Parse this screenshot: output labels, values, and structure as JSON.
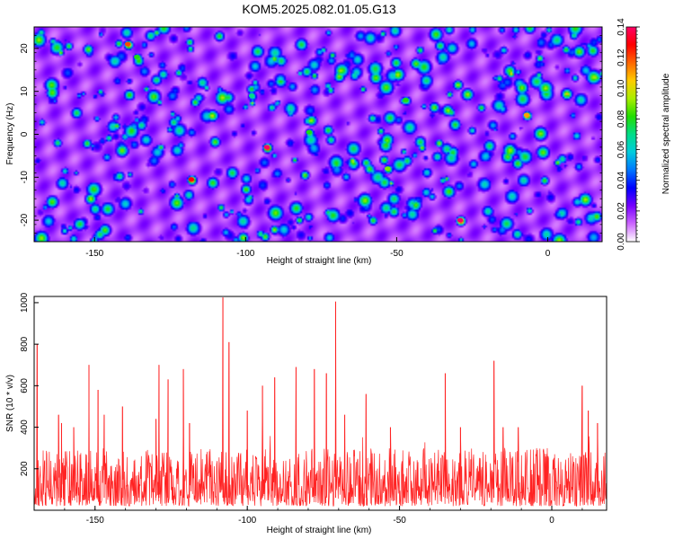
{
  "title": "KOM5.2025.082.01.05.G13",
  "chart_data": [
    {
      "type": "heatmap",
      "xlabel": "Height of straight line (km)",
      "ylabel": "Frequency (Hz)",
      "xlim": [
        -170,
        18
      ],
      "ylim": [
        -25,
        25
      ],
      "xticks": [
        -150,
        -100,
        -50,
        0
      ],
      "yticks": [
        -20,
        -10,
        0,
        10,
        20
      ],
      "colorbar": {
        "label": "Normalized spectral amplitude",
        "range": [
          0,
          0.14
        ],
        "ticks": [
          "0.00",
          "0.02",
          "0.04",
          "0.06",
          "0.08",
          "0.10",
          "0.12",
          "0.14"
        ],
        "colors": [
          "#ffffff",
          "#cc66ff",
          "#7700ff",
          "#0000ff",
          "#0077ff",
          "#00ccdd",
          "#00dd88",
          "#22dd00",
          "#aaee00",
          "#ffcc00",
          "#ff6600",
          "#ff0000",
          "#ff0066"
        ]
      },
      "hotspots": [
        {
          "x": -93,
          "y": -3,
          "value": 0.14
        },
        {
          "x": -29,
          "y": -20,
          "value": 0.14
        },
        {
          "x": -118,
          "y": -10.5,
          "value": 0.13
        },
        {
          "x": -139,
          "y": 21,
          "value": 0.12
        },
        {
          "x": -7,
          "y": 4.5,
          "value": 0.11
        },
        {
          "x": -53,
          "y": -8,
          "value": 0.09
        },
        {
          "x": -47,
          "y": 8,
          "value": 0.08
        },
        {
          "x": -79,
          "y": 0.5,
          "value": 0.08
        },
        {
          "x": -136,
          "y": 18,
          "value": 0.08
        },
        {
          "x": -98,
          "y": 9,
          "value": 0.07
        }
      ]
    },
    {
      "type": "line",
      "xlabel": "Height of straight line (km)",
      "ylabel": "SNR (10 * v/v)",
      "xlim": [
        -170,
        18
      ],
      "ylim": [
        0,
        1030
      ],
      "xticks": [
        -150,
        -100,
        -50,
        0
      ],
      "yticks": [
        200,
        400,
        600,
        800,
        1000
      ],
      "color": "#ff2222",
      "baseline_range": [
        20,
        300
      ],
      "peaks": [
        {
          "x": -169,
          "y": 800
        },
        {
          "x": -162,
          "y": 460
        },
        {
          "x": -161,
          "y": 420
        },
        {
          "x": -157,
          "y": 400
        },
        {
          "x": -152,
          "y": 700
        },
        {
          "x": -149,
          "y": 580
        },
        {
          "x": -147,
          "y": 460
        },
        {
          "x": -141,
          "y": 500
        },
        {
          "x": -130,
          "y": 440
        },
        {
          "x": -129,
          "y": 700
        },
        {
          "x": -126,
          "y": 630
        },
        {
          "x": -121,
          "y": 680
        },
        {
          "x": -119,
          "y": 420
        },
        {
          "x": -108,
          "y": 1025
        },
        {
          "x": -106,
          "y": 810
        },
        {
          "x": -100,
          "y": 480
        },
        {
          "x": -95,
          "y": 600
        },
        {
          "x": -91,
          "y": 640
        },
        {
          "x": -84,
          "y": 690
        },
        {
          "x": -78,
          "y": 680
        },
        {
          "x": -74,
          "y": 660
        },
        {
          "x": -71,
          "y": 1005
        },
        {
          "x": -68,
          "y": 460
        },
        {
          "x": -61,
          "y": 560
        },
        {
          "x": -53,
          "y": 400
        },
        {
          "x": -35,
          "y": 660
        },
        {
          "x": -30,
          "y": 400
        },
        {
          "x": -19,
          "y": 720
        },
        {
          "x": -16,
          "y": 400
        },
        {
          "x": -11,
          "y": 400
        },
        {
          "x": 10,
          "y": 600
        },
        {
          "x": 12,
          "y": 480
        },
        {
          "x": 15,
          "y": 420
        }
      ]
    }
  ]
}
